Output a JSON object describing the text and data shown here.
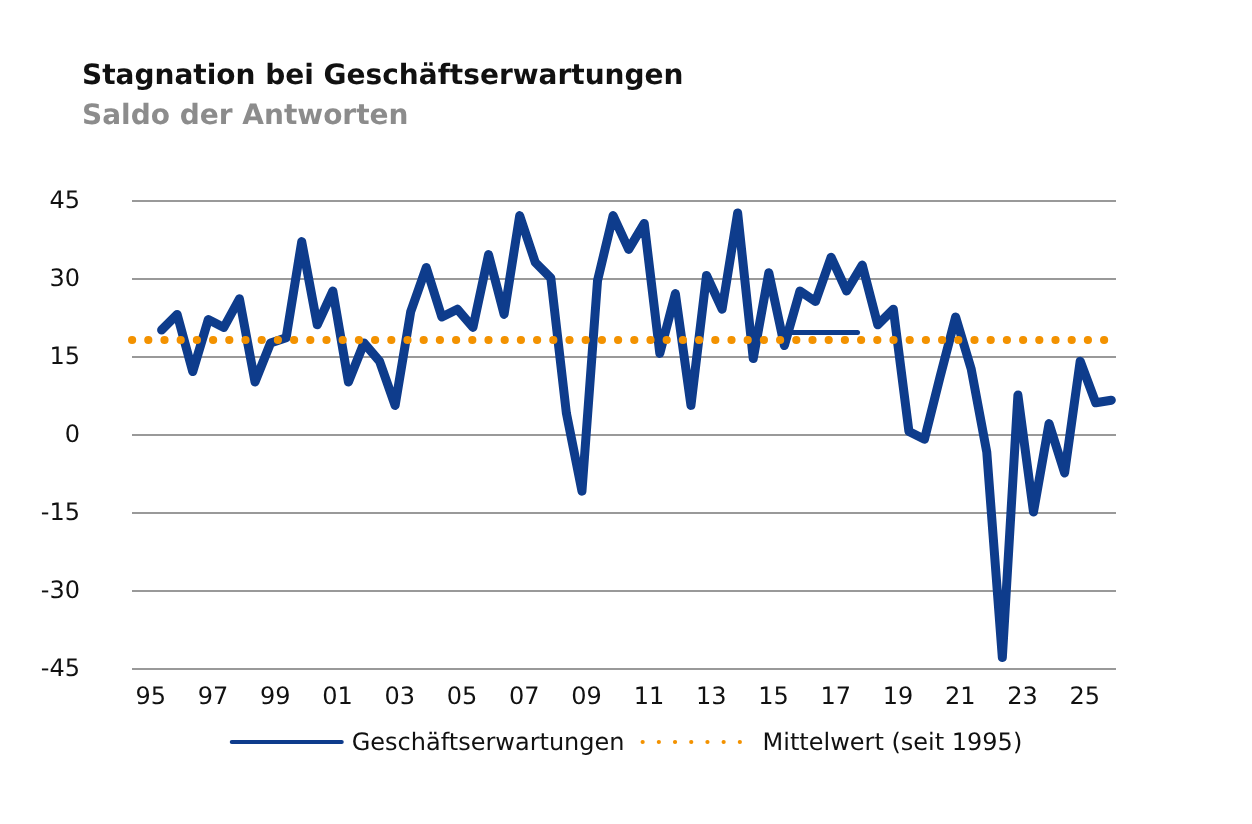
{
  "chart_data": {
    "type": "line",
    "title": "Stagnation bei Geschäftserwartungen",
    "subtitle": "Saldo der Antworten",
    "x": [
      1995.35,
      1995.85,
      1996.35,
      1996.85,
      1997.35,
      1997.85,
      1998.35,
      1998.85,
      1999.35,
      1999.85,
      2000.35,
      2000.85,
      2001.35,
      2001.85,
      2002.35,
      2002.85,
      2003.35,
      2003.85,
      2004.35,
      2004.85,
      2005.35,
      2005.85,
      2006.35,
      2006.85,
      2007.35,
      2007.85,
      2008.35,
      2008.85,
      2009.35,
      2009.85,
      2010.35,
      2010.85,
      2011.35,
      2011.85,
      2012.35,
      2012.85,
      2013.35,
      2013.85,
      2014.35,
      2014.85,
      2015.35,
      2015.85,
      2016.35,
      2016.85,
      2017.35,
      2017.85,
      2018.35,
      2018.85,
      2019.35,
      2019.85,
      2020.35,
      2020.85,
      2021.35,
      2021.85,
      2022.35,
      2022.85,
      2023.35,
      2023.85,
      2024.35,
      2024.85,
      2025.35,
      2025.85
    ],
    "series": [
      {
        "name": "Geschäftserwartungen",
        "color": "#0e3c8c",
        "values": [
          20,
          23,
          12,
          22,
          20.5,
          26,
          10,
          17.5,
          18.5,
          37,
          21,
          27.5,
          10,
          17.5,
          14,
          5.5,
          23.5,
          32,
          22.5,
          24,
          20.5,
          34.5,
          23,
          42,
          33,
          30,
          4,
          -11,
          29.5,
          42,
          35.5,
          40.5,
          15.5,
          27,
          5.5,
          30.5,
          24,
          42.5,
          14.5,
          31,
          17,
          27.5,
          25.5,
          34,
          27.5,
          32.5,
          21,
          24,
          0.5,
          -1,
          11,
          22.5,
          12.5,
          -3.5,
          -43,
          7.5,
          -15,
          2,
          -7.5,
          14,
          6,
          6.5
        ]
      },
      {
        "color": "#0e3c8c",
        "x": [
          2015.4,
          2017.7
        ],
        "values": [
          19.5,
          19.5
        ]
      }
    ],
    "ref_lines": [
      {
        "axis": "y",
        "value": 18.3,
        "label": "Mittelwert (seit 1995)",
        "color": "#f39200",
        "line_style": "dotted"
      }
    ],
    "xlim": [
      1994.4,
      2026
    ],
    "xticks": [
      {
        "value": 1995,
        "label": "95"
      },
      {
        "value": 1997,
        "label": "97"
      },
      {
        "value": 1999,
        "label": "99"
      },
      {
        "value": 2001,
        "label": "01"
      },
      {
        "value": 2003,
        "label": "03"
      },
      {
        "value": 2005,
        "label": "05"
      },
      {
        "value": 2007,
        "label": "07"
      },
      {
        "value": 2009,
        "label": "09"
      },
      {
        "value": 2011,
        "label": "11"
      },
      {
        "value": 2013,
        "label": "13"
      },
      {
        "value": 2015,
        "label": "15"
      },
      {
        "value": 2017,
        "label": "17"
      },
      {
        "value": 2019,
        "label": "19"
      },
      {
        "value": 2021,
        "label": "21"
      },
      {
        "value": 2023,
        "label": "23"
      },
      {
        "value": 2025,
        "label": "25"
      }
    ],
    "ylim": [
      -45,
      45
    ],
    "yticks": [
      -45,
      -30,
      -15,
      0,
      15,
      30,
      45
    ],
    "grid": "y",
    "legend": "bottom",
    "marker": "none",
    "line_style": "solid"
  }
}
